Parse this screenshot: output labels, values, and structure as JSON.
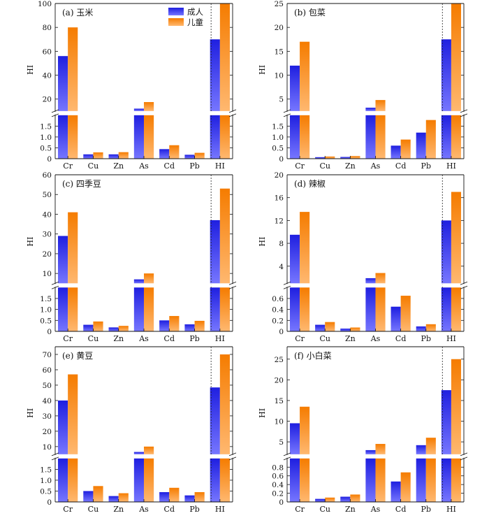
{
  "legend": {
    "adult": "成人",
    "child": "儿童"
  },
  "colors": {
    "adult": "#3333ee",
    "child": "#ff8c1a"
  },
  "chart_data": [
    {
      "type": "bar",
      "panel": "(a) 玉米",
      "ylabel": "HI",
      "categories": [
        "Cr",
        "Cu",
        "Zn",
        "As",
        "Cd",
        "Pb",
        "HI"
      ],
      "series": [
        {
          "name": "成人",
          "values": [
            56,
            0.2,
            0.2,
            12,
            0.44,
            0.18,
            70
          ]
        },
        {
          "name": "儿童",
          "values": [
            80,
            0.29,
            0.3,
            17.5,
            0.62,
            0.27,
            100
          ]
        }
      ],
      "lower": {
        "max": 2.0,
        "ticks": [
          0,
          0.5,
          1.0,
          1.5
        ],
        "labels": [
          "0",
          "0.5",
          "1.0",
          "1.5"
        ]
      },
      "upper": {
        "min": 10,
        "max": 100,
        "ticks": [
          20,
          40,
          60,
          80,
          100
        ]
      }
    },
    {
      "type": "bar",
      "panel": "(b) 包菜",
      "ylabel": "HI",
      "categories": [
        "Cr",
        "Cu",
        "Zn",
        "As",
        "Cd",
        "Pb",
        "HI"
      ],
      "series": [
        {
          "name": "成人",
          "values": [
            12,
            0.07,
            0.08,
            3.2,
            0.6,
            1.2,
            17.5
          ]
        },
        {
          "name": "儿童",
          "values": [
            17,
            0.1,
            0.12,
            4.8,
            0.88,
            1.78,
            25
          ]
        }
      ],
      "lower": {
        "max": 2.0,
        "ticks": [
          0,
          0.5,
          1.0,
          1.5
        ],
        "labels": [
          "0",
          "0.5",
          "1.0",
          "1.5"
        ]
      },
      "upper": {
        "min": 2.5,
        "max": 25,
        "ticks": [
          5,
          10,
          15,
          20,
          25
        ]
      }
    },
    {
      "type": "bar",
      "panel": "(c) 四季豆",
      "ylabel": "HI",
      "categories": [
        "Cr",
        "Cu",
        "Zn",
        "As",
        "Cd",
        "Pb",
        "HI"
      ],
      "series": [
        {
          "name": "成人",
          "values": [
            29,
            0.3,
            0.18,
            7,
            0.5,
            0.32,
            37
          ]
        },
        {
          "name": "儿童",
          "values": [
            41,
            0.45,
            0.25,
            10,
            0.7,
            0.48,
            53
          ]
        }
      ],
      "lower": {
        "max": 2.0,
        "ticks": [
          0,
          0.5,
          1.0,
          1.5
        ],
        "labels": [
          "0",
          "0.5",
          "1.0",
          "1.5"
        ]
      },
      "upper": {
        "min": 5,
        "max": 60,
        "ticks": [
          10,
          20,
          30,
          40,
          50,
          60
        ]
      }
    },
    {
      "type": "bar",
      "panel": "(d) 辣椒",
      "ylabel": "HI",
      "categories": [
        "Cr",
        "Cu",
        "Zn",
        "As",
        "Cd",
        "Pb",
        "HI"
      ],
      "series": [
        {
          "name": "成人",
          "values": [
            9.5,
            0.12,
            0.05,
            1.9,
            0.45,
            0.09,
            12
          ]
        },
        {
          "name": "儿童",
          "values": [
            13.5,
            0.17,
            0.07,
            2.8,
            0.65,
            0.13,
            17
          ]
        }
      ],
      "lower": {
        "max": 0.8,
        "ticks": [
          0,
          0.2,
          0.4,
          0.6
        ],
        "labels": [
          "0",
          "0.2",
          "0.4",
          "0.6"
        ]
      },
      "upper": {
        "min": 1.0,
        "max": 20,
        "ticks": [
          4,
          8,
          12,
          16,
          20
        ]
      }
    },
    {
      "type": "bar",
      "panel": "(e) 黄豆",
      "ylabel": "HI",
      "categories": [
        "Cr",
        "Cu",
        "Zn",
        "As",
        "Cd",
        "Pb",
        "HI"
      ],
      "series": [
        {
          "name": "成人",
          "values": [
            40,
            0.5,
            0.27,
            6.5,
            0.45,
            0.3,
            48.5
          ]
        },
        {
          "name": "儿童",
          "values": [
            57,
            0.73,
            0.4,
            10,
            0.65,
            0.45,
            70
          ]
        }
      ],
      "lower": {
        "max": 2.0,
        "ticks": [
          0,
          0.5,
          1.0,
          1.5
        ],
        "labels": [
          "0",
          "0.5",
          "1.0",
          "1.5"
        ]
      },
      "upper": {
        "min": 5,
        "max": 75,
        "ticks": [
          10,
          20,
          30,
          40,
          50,
          60,
          70
        ]
      }
    },
    {
      "type": "bar",
      "panel": "(f) 小白菜",
      "ylabel": "HI",
      "categories": [
        "Cr",
        "Cu",
        "Zn",
        "As",
        "Cd",
        "Pb",
        "HI"
      ],
      "series": [
        {
          "name": "成人",
          "values": [
            9.5,
            0.07,
            0.12,
            3,
            0.47,
            4.2,
            17.5
          ]
        },
        {
          "name": "儿童",
          "values": [
            13.5,
            0.1,
            0.17,
            4.5,
            0.68,
            6,
            25
          ]
        }
      ],
      "lower": {
        "max": 1.0,
        "ticks": [
          0,
          0.2,
          0.4,
          0.6,
          0.8
        ],
        "labels": [
          "0",
          "0.2",
          "0.4",
          "0.6",
          "0.8"
        ]
      },
      "upper": {
        "min": 2.0,
        "max": 28,
        "ticks": [
          5,
          10,
          15,
          20,
          25
        ]
      }
    }
  ]
}
